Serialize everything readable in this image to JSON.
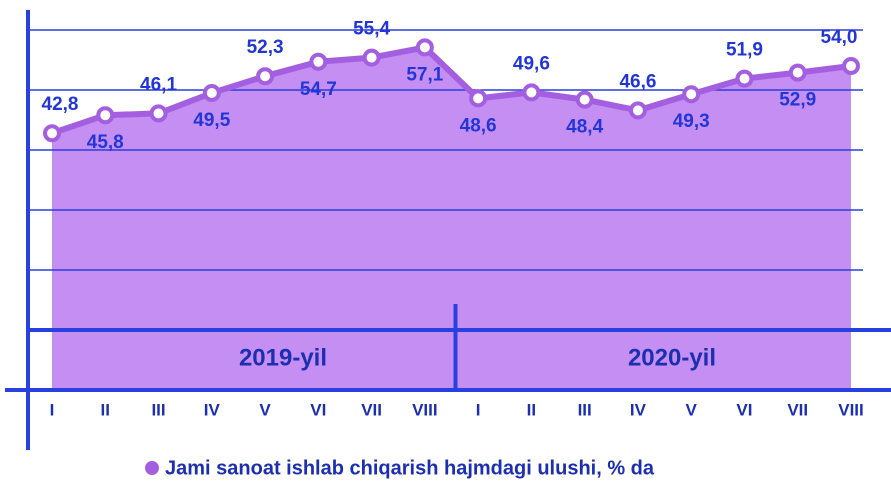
{
  "chart_data": {
    "type": "area",
    "categories": [
      "I",
      "II",
      "III",
      "IV",
      "V",
      "VI",
      "VII",
      "VIII",
      "I",
      "II",
      "III",
      "IV",
      "V",
      "VI",
      "VII",
      "VIII"
    ],
    "groups": [
      "2019-yil",
      "2020-yil"
    ],
    "series": [
      {
        "name": "Jami sanoat ishlab chiqarish hajmdagi ulushi, % da",
        "color": "#a45fe0",
        "values": [
          42.8,
          45.8,
          46.1,
          49.5,
          52.3,
          54.7,
          55.4,
          57.1,
          48.6,
          49.6,
          48.4,
          46.6,
          49.3,
          51.9,
          52.9,
          54.0
        ],
        "value_labels": [
          "42,8",
          "45,8",
          "46,1",
          "49,5",
          "52,3",
          "54,7",
          "55,4",
          "57,1",
          "48,6",
          "49,6",
          "48,4",
          "46,6",
          "49,3",
          "51,9",
          "52,9",
          "54,0"
        ]
      }
    ],
    "ylim": [
      0,
      60
    ],
    "yticks": [
      0,
      10,
      20,
      30,
      40,
      50,
      60
    ],
    "grid": true
  }
}
